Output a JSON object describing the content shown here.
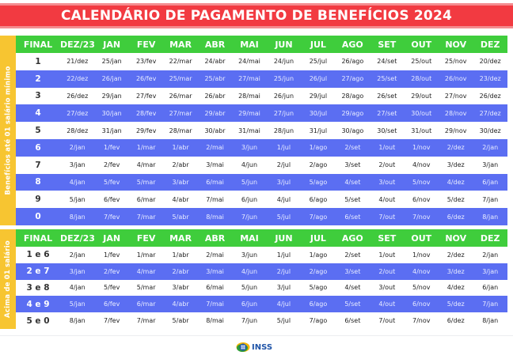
{
  "title": "CALENDÁRIO DE PAGAMENTO DE BENEFÍCIOS 2024",
  "colors": {
    "title_bg": "#f23a41",
    "header_bg": "#3fcd3c",
    "alt_row_bg": "#5b6ef2",
    "side_label_bg": "#f7c531",
    "logo_blue": "#1f54a8"
  },
  "columns": [
    "FINAL",
    "DEZ/23",
    "JAN",
    "FEV",
    "MAR",
    "ABR",
    "MAI",
    "JUN",
    "JUL",
    "AGO",
    "SET",
    "OUT",
    "NOV",
    "DEZ"
  ],
  "table1": {
    "side_label": "Benefícios até 01 salário mínimo",
    "rows": [
      [
        "1",
        "21/dez",
        "25/jan",
        "23/fev",
        "22/mar",
        "24/abr",
        "24/mai",
        "24/jun",
        "25/jul",
        "26/ago",
        "24/set",
        "25/out",
        "25/nov",
        "20/dez"
      ],
      [
        "2",
        "22/dez",
        "26/jan",
        "26/fev",
        "25/mar",
        "25/abr",
        "27/mai",
        "25/jun",
        "26/jul",
        "27/ago",
        "25/set",
        "28/out",
        "26/nov",
        "23/dez"
      ],
      [
        "3",
        "26/dez",
        "29/jan",
        "27/fev",
        "26/mar",
        "26/abr",
        "28/mai",
        "26/jun",
        "29/jul",
        "28/ago",
        "26/set",
        "29/out",
        "27/nov",
        "26/dez"
      ],
      [
        "4",
        "27/dez",
        "30/jan",
        "28/fev",
        "27/mar",
        "29/abr",
        "29/mai",
        "27/jun",
        "30/jul",
        "29/ago",
        "27/set",
        "30/out",
        "28/nov",
        "27/dez"
      ],
      [
        "5",
        "28/dez",
        "31/jan",
        "29/fev",
        "28/mar",
        "30/abr",
        "31/mai",
        "28/jun",
        "31/jul",
        "30/ago",
        "30/set",
        "31/out",
        "29/nov",
        "30/dez"
      ],
      [
        "6",
        "2/jan",
        "1/fev",
        "1/mar",
        "1/abr",
        "2/mai",
        "3/jun",
        "1/jul",
        "1/ago",
        "2/set",
        "1/out",
        "1/nov",
        "2/dez",
        "2/jan"
      ],
      [
        "7",
        "3/jan",
        "2/fev",
        "4/mar",
        "2/abr",
        "3/mai",
        "4/jun",
        "2/jul",
        "2/ago",
        "3/set",
        "2/out",
        "4/nov",
        "3/dez",
        "3/jan"
      ],
      [
        "8",
        "4/jan",
        "5/fev",
        "5/mar",
        "3/abr",
        "6/mai",
        "5/jun",
        "3/jul",
        "5/ago",
        "4/set",
        "3/out",
        "5/nov",
        "4/dez",
        "6/jan"
      ],
      [
        "9",
        "5/jan",
        "6/fev",
        "6/mar",
        "4/abr",
        "7/mai",
        "6/jun",
        "4/jul",
        "6/ago",
        "5/set",
        "4/out",
        "6/nov",
        "5/dez",
        "7/jan"
      ],
      [
        "0",
        "8/jan",
        "7/fev",
        "7/mar",
        "5/abr",
        "8/mai",
        "7/jun",
        "5/jul",
        "7/ago",
        "6/set",
        "7/out",
        "7/nov",
        "6/dez",
        "8/jan"
      ]
    ]
  },
  "table2": {
    "side_label": "Acima de 01 salário",
    "rows": [
      [
        "1 e 6",
        "2/jan",
        "1/fev",
        "1/mar",
        "1/abr",
        "2/mai",
        "3/jun",
        "1/jul",
        "1/ago",
        "2/set",
        "1/out",
        "1/nov",
        "2/dez",
        "2/jan"
      ],
      [
        "2 e 7",
        "3/jan",
        "2/fev",
        "4/mar",
        "2/abr",
        "3/mai",
        "4/jun",
        "2/jul",
        "2/ago",
        "3/set",
        "2/out",
        "4/nov",
        "3/dez",
        "3/jan"
      ],
      [
        "3 e 8",
        "4/jan",
        "5/fev",
        "5/mar",
        "3/abr",
        "6/mai",
        "5/jun",
        "3/jul",
        "5/ago",
        "4/set",
        "3/out",
        "5/nov",
        "4/dez",
        "6/jan"
      ],
      [
        "4 e 9",
        "5/jan",
        "6/fev",
        "6/mar",
        "4/abr",
        "7/mai",
        "6/jun",
        "4/jul",
        "6/ago",
        "5/set",
        "4/out",
        "6/nov",
        "5/dez",
        "7/jan"
      ],
      [
        "5 e 0",
        "8/jan",
        "7/fev",
        "7/mar",
        "5/abr",
        "8/mai",
        "7/jun",
        "5/jul",
        "7/ago",
        "6/set",
        "7/out",
        "7/nov",
        "6/dez",
        "8/jan"
      ]
    ]
  },
  "footer": {
    "logo_icon": "inss-logo-icon",
    "logo_text": "INSS"
  }
}
